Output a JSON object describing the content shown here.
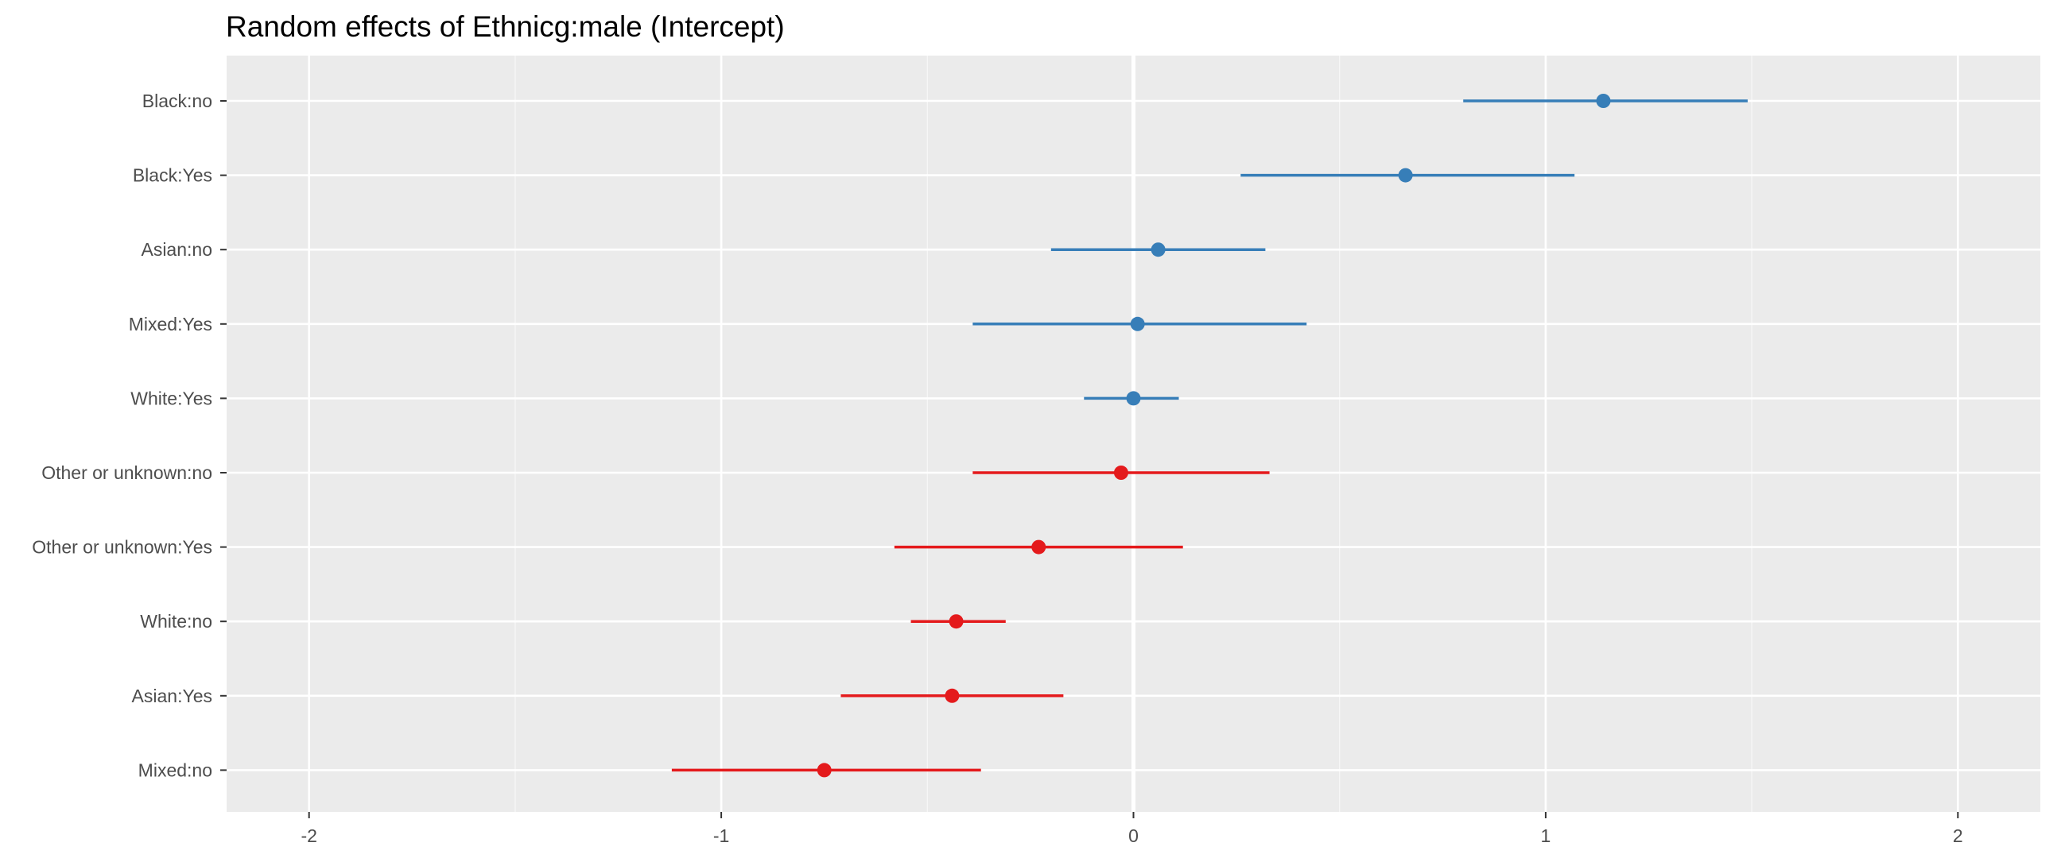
{
  "chart_data": {
    "type": "scatter",
    "title": "Random effects of Ethnicg:male (Intercept)",
    "xlabel": "",
    "ylabel": "",
    "xlim": [
      -2.2,
      2.2
    ],
    "xticks": [
      -2,
      -1,
      0,
      1,
      2
    ],
    "xtick_labels": [
      "-2",
      "-1",
      "0",
      "1",
      "2"
    ],
    "grid": true,
    "legend": "none",
    "colors": {
      "positive": "#377eb8",
      "negative": "#e41a1c"
    },
    "points": [
      {
        "label": "Black:no",
        "estimate": 1.14,
        "lower": 0.8,
        "upper": 1.49
      },
      {
        "label": "Black:Yes",
        "estimate": 0.66,
        "lower": 0.26,
        "upper": 1.07
      },
      {
        "label": "Asian:no",
        "estimate": 0.06,
        "lower": -0.2,
        "upper": 0.32
      },
      {
        "label": "Mixed:Yes",
        "estimate": 0.01,
        "lower": -0.39,
        "upper": 0.42
      },
      {
        "label": "White:Yes",
        "estimate": 0.0,
        "lower": -0.12,
        "upper": 0.11
      },
      {
        "label": "Other or unknown:no",
        "estimate": -0.03,
        "lower": -0.39,
        "upper": 0.33
      },
      {
        "label": "Other or unknown:Yes",
        "estimate": -0.23,
        "lower": -0.58,
        "upper": 0.12
      },
      {
        "label": "White:no",
        "estimate": -0.43,
        "lower": -0.54,
        "upper": -0.31
      },
      {
        "label": "Asian:Yes",
        "estimate": -0.44,
        "lower": -0.71,
        "upper": -0.17
      },
      {
        "label": "Mixed:no",
        "estimate": -0.75,
        "lower": -1.12,
        "upper": -0.37
      }
    ]
  }
}
